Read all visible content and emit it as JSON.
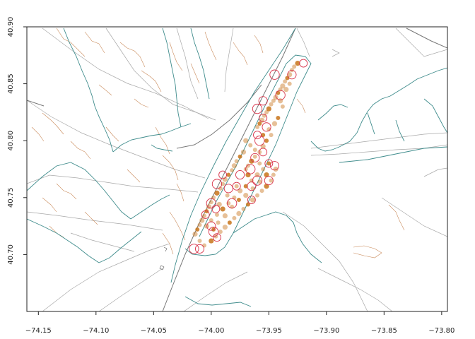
{
  "chart_data": {
    "type": "scatter",
    "title": "",
    "xlabel": "",
    "ylabel": "",
    "xlim": [
      -74.16,
      -73.795
    ],
    "ylim": [
      40.65,
      40.9
    ],
    "x_ticks": [
      -74.15,
      -74.1,
      -74.05,
      -74.0,
      -73.95,
      -73.9,
      -73.85,
      -73.8
    ],
    "x_tick_labels": [
      "−74.15",
      "−74.10",
      "−74.05",
      "−74.00",
      "−73.95",
      "−73.90",
      "−73.85",
      "−73.80"
    ],
    "y_ticks": [
      40.7,
      40.75,
      40.8,
      40.85,
      40.9
    ],
    "y_tick_labels": [
      "40.70",
      "40.75",
      "40.80",
      "40.85",
      "40.90"
    ],
    "grid": false,
    "legend": "none",
    "colors": {
      "filled_points": "#c8741a",
      "open_circles": "#d8334a",
      "water_lines": "#3f8c8c",
      "boundary_lines": "#a8a8a8",
      "road_lines": "#c98a5a",
      "highway_lines": "#777777"
    },
    "series": [
      {
        "marker": "filled",
        "points": [
          [
            -73.925,
            40.868
          ],
          [
            -73.928,
            40.865
          ],
          [
            -73.93,
            40.862
          ],
          [
            -73.932,
            40.858
          ],
          [
            -73.934,
            40.855
          ],
          [
            -73.936,
            40.852
          ],
          [
            -73.938,
            40.848
          ],
          [
            -73.94,
            40.845
          ],
          [
            -73.942,
            40.842
          ],
          [
            -73.944,
            40.838
          ],
          [
            -73.946,
            40.835
          ],
          [
            -73.948,
            40.832
          ],
          [
            -73.95,
            40.828
          ],
          [
            -73.952,
            40.825
          ],
          [
            -73.954,
            40.822
          ],
          [
            -73.956,
            40.818
          ],
          [
            -73.958,
            40.815
          ],
          [
            -73.96,
            40.812
          ],
          [
            -73.945,
            40.815
          ],
          [
            -73.948,
            40.805
          ],
          [
            -73.952,
            40.8
          ],
          [
            -73.955,
            40.795
          ],
          [
            -73.958,
            40.79
          ],
          [
            -73.962,
            40.786
          ],
          [
            -73.965,
            40.782
          ],
          [
            -73.968,
            40.778
          ],
          [
            -73.97,
            40.775
          ],
          [
            -73.972,
            40.79
          ],
          [
            -73.975,
            40.786
          ],
          [
            -73.978,
            40.782
          ],
          [
            -73.98,
            40.778
          ],
          [
            -73.982,
            40.774
          ],
          [
            -73.985,
            40.77
          ],
          [
            -73.988,
            40.766
          ],
          [
            -73.99,
            40.762
          ],
          [
            -73.992,
            40.758
          ],
          [
            -73.995,
            40.754
          ],
          [
            -73.998,
            40.75
          ],
          [
            -74.0,
            40.746
          ],
          [
            -74.002,
            40.742
          ],
          [
            -74.004,
            40.738
          ],
          [
            -74.006,
            40.734
          ],
          [
            -74.008,
            40.73
          ],
          [
            -74.01,
            40.726
          ],
          [
            -74.012,
            40.722
          ],
          [
            -74.014,
            40.718
          ],
          [
            -74.01,
            40.712
          ],
          [
            -74.006,
            40.708
          ],
          [
            -74.0,
            40.712
          ],
          [
            -73.996,
            40.716
          ],
          [
            -73.992,
            40.72
          ],
          [
            -73.988,
            40.724
          ],
          [
            -73.984,
            40.728
          ],
          [
            -73.98,
            40.732
          ],
          [
            -73.976,
            40.736
          ],
          [
            -73.972,
            40.74
          ],
          [
            -73.968,
            40.744
          ],
          [
            -73.964,
            40.748
          ],
          [
            -73.96,
            40.752
          ],
          [
            -73.956,
            40.756
          ],
          [
            -73.952,
            40.76
          ],
          [
            -73.948,
            40.765
          ],
          [
            -73.946,
            40.77
          ],
          [
            -73.944,
            40.775
          ],
          [
            -73.95,
            40.78
          ],
          [
            -73.955,
            40.775
          ],
          [
            -73.96,
            40.77
          ],
          [
            -73.965,
            40.765
          ],
          [
            -73.97,
            40.76
          ],
          [
            -73.975,
            40.756
          ],
          [
            -73.98,
            40.75
          ],
          [
            -73.985,
            40.745
          ],
          [
            -73.99,
            40.74
          ],
          [
            -73.995,
            40.735
          ],
          [
            -74.0,
            40.73
          ],
          [
            -74.004,
            40.725
          ],
          [
            -73.998,
            40.722
          ],
          [
            -73.994,
            40.728
          ],
          [
            -73.988,
            40.734
          ],
          [
            -73.982,
            40.742
          ],
          [
            -73.976,
            40.748
          ],
          [
            -73.97,
            40.752
          ],
          [
            -73.964,
            40.758
          ],
          [
            -73.958,
            40.764
          ],
          [
            -73.952,
            40.77
          ],
          [
            -73.962,
            40.792
          ],
          [
            -73.966,
            40.796
          ],
          [
            -73.97,
            40.8
          ],
          [
            -73.955,
            40.805
          ],
          [
            -73.95,
            40.81
          ],
          [
            -73.94,
            40.835
          ],
          [
            -73.938,
            40.83
          ],
          [
            -73.942,
            40.82
          ],
          [
            -73.935,
            40.845
          ],
          [
            -73.932,
            40.85
          ],
          [
            -73.958,
            40.78
          ],
          [
            -73.968,
            40.77
          ],
          [
            -73.978,
            40.76
          ],
          [
            -73.986,
            40.752
          ],
          [
            -73.993,
            40.744
          ]
        ]
      },
      {
        "marker": "open",
        "points": [
          [
            -73.92,
            40.868
          ],
          [
            -73.93,
            40.858
          ],
          [
            -73.94,
            40.84
          ],
          [
            -73.955,
            40.82
          ],
          [
            -73.952,
            40.812
          ],
          [
            -73.96,
            40.828
          ],
          [
            -73.955,
            40.79
          ],
          [
            -73.962,
            40.785
          ],
          [
            -73.966,
            40.775
          ],
          [
            -73.95,
            40.78
          ],
          [
            -73.945,
            40.778
          ],
          [
            -73.96,
            40.765
          ],
          [
            -73.978,
            40.76
          ],
          [
            -73.985,
            40.758
          ],
          [
            -73.995,
            40.762
          ],
          [
            -73.99,
            40.77
          ],
          [
            -73.975,
            40.77
          ],
          [
            -74.0,
            40.745
          ],
          [
            -74.005,
            40.735
          ],
          [
            -74.0,
            40.725
          ],
          [
            -73.998,
            40.72
          ],
          [
            -73.996,
            40.74
          ],
          [
            -74.01,
            40.705
          ],
          [
            -74.015,
            40.705
          ],
          [
            -73.995,
            40.715
          ],
          [
            -73.965,
            40.76
          ],
          [
            -73.958,
            40.8
          ],
          [
            -73.96,
            40.805
          ],
          [
            -73.955,
            40.835
          ],
          [
            -73.945,
            40.858
          ],
          [
            -73.965,
            40.748
          ],
          [
            -73.95,
            40.765
          ],
          [
            -73.982,
            40.745
          ]
        ]
      }
    ]
  }
}
